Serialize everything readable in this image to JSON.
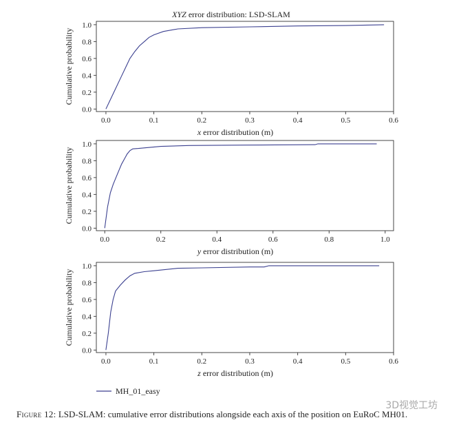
{
  "figure_caption": {
    "label": "Figure 12:",
    "text": "LSD-SLAM: cumulative error distributions alongside each axis of the position on EuRoC MH01."
  },
  "watermark": "3D视觉工坊",
  "legend": {
    "label": "MH_01_easy",
    "placement": "bottom-left",
    "color": "#3a3f8f"
  },
  "chart_data": [
    {
      "type": "line",
      "title": "XYZ error distribution: LSD-SLAM",
      "title_italic": "XYZ",
      "title_rest": " error distribution: LSD-SLAM",
      "xlabel_italic": "x",
      "xlabel_rest": " error distribution (m)",
      "ylabel": "Cumulative probability",
      "xlim": [
        -0.02,
        0.6
      ],
      "ylim": [
        -0.03,
        1.04
      ],
      "xticks": [
        "0.0",
        "0.1",
        "0.2",
        "0.3",
        "0.4",
        "0.5",
        "0.6"
      ],
      "yticks": [
        "0.0",
        "0.2",
        "0.4",
        "0.6",
        "0.8",
        "1.0"
      ],
      "series": [
        {
          "name": "MH_01_easy",
          "x": [
            0.0,
            0.01,
            0.02,
            0.03,
            0.04,
            0.05,
            0.06,
            0.07,
            0.08,
            0.09,
            0.1,
            0.12,
            0.15,
            0.2,
            0.3,
            0.4,
            0.5,
            0.58
          ],
          "y": [
            0.0,
            0.12,
            0.24,
            0.36,
            0.48,
            0.6,
            0.68,
            0.75,
            0.8,
            0.85,
            0.88,
            0.92,
            0.95,
            0.965,
            0.975,
            0.985,
            0.99,
            1.0
          ]
        }
      ]
    },
    {
      "type": "line",
      "title": "",
      "xlabel_italic": "y",
      "xlabel_rest": " error distribution (m)",
      "ylabel": "Cumulative probability",
      "xlim": [
        -0.03,
        1.03
      ],
      "ylim": [
        -0.03,
        1.04
      ],
      "xticks": [
        "0.0",
        "0.2",
        "0.4",
        "0.6",
        "0.8",
        "1.0"
      ],
      "yticks": [
        "0.0",
        "0.2",
        "0.4",
        "0.6",
        "0.8",
        "1.0"
      ],
      "series": [
        {
          "name": "MH_01_easy",
          "x": [
            0.0,
            0.01,
            0.02,
            0.03,
            0.04,
            0.05,
            0.06,
            0.07,
            0.08,
            0.09,
            0.1,
            0.12,
            0.15,
            0.2,
            0.3,
            0.5,
            0.75,
            0.76,
            0.97
          ],
          "y": [
            0.0,
            0.25,
            0.42,
            0.52,
            0.6,
            0.68,
            0.76,
            0.82,
            0.88,
            0.92,
            0.94,
            0.945,
            0.955,
            0.97,
            0.98,
            0.985,
            0.99,
            1.0,
            1.0
          ]
        }
      ]
    },
    {
      "type": "line",
      "title": "",
      "xlabel_italic": "z",
      "xlabel_rest": " error distribution (m)",
      "ylabel": "Cumulative probability",
      "xlim": [
        -0.02,
        0.6
      ],
      "ylim": [
        -0.03,
        1.04
      ],
      "xticks": [
        "0.0",
        "0.1",
        "0.2",
        "0.3",
        "0.4",
        "0.5",
        "0.6"
      ],
      "yticks": [
        "0.0",
        "0.2",
        "0.4",
        "0.6",
        "0.8",
        "1.0"
      ],
      "series": [
        {
          "name": "MH_01_easy",
          "x": [
            0.0,
            0.005,
            0.01,
            0.015,
            0.02,
            0.03,
            0.04,
            0.05,
            0.06,
            0.08,
            0.1,
            0.15,
            0.2,
            0.3,
            0.33,
            0.34,
            0.57
          ],
          "y": [
            0.0,
            0.2,
            0.45,
            0.6,
            0.7,
            0.77,
            0.83,
            0.88,
            0.91,
            0.93,
            0.94,
            0.97,
            0.975,
            0.985,
            0.985,
            1.0,
            1.0
          ]
        }
      ]
    }
  ]
}
